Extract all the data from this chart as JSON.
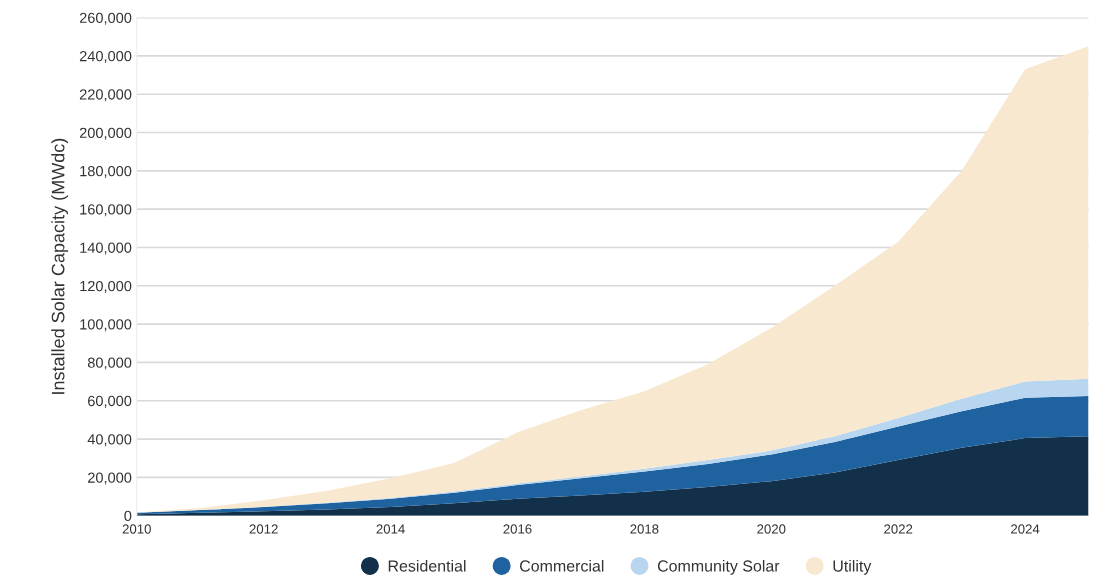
{
  "chart_data": {
    "type": "area",
    "stacked": true,
    "ylabel": "Installed Solar Capacity (MWdc)",
    "x": [
      2010,
      2011,
      2012,
      2013,
      2014,
      2015,
      2016,
      2017,
      2018,
      2019,
      2020,
      2021,
      2022,
      2023,
      2024,
      2025
    ],
    "xlim": [
      2010,
      2025
    ],
    "xticks": [
      2010,
      2012,
      2014,
      2016,
      2018,
      2020,
      2022,
      2024
    ],
    "ylim": [
      0,
      260000
    ],
    "yticks": [
      {
        "value": 0,
        "label": "0"
      },
      {
        "value": 20000,
        "label": "20,000"
      },
      {
        "value": 40000,
        "label": "40,000"
      },
      {
        "value": 60000,
        "label": "60,000"
      },
      {
        "value": 80000,
        "label": "80,000"
      },
      {
        "value": 100000,
        "label": "100,000"
      },
      {
        "value": 120000,
        "label": "120,000"
      },
      {
        "value": 140000,
        "label": "140,000"
      },
      {
        "value": 160000,
        "label": "160,000"
      },
      {
        "value": 180000,
        "label": "180,000"
      },
      {
        "value": 200000,
        "label": "200,000"
      },
      {
        "value": 220000,
        "label": "220,000"
      },
      {
        "value": 240000,
        "label": "240,000"
      },
      {
        "value": 260000,
        "label": "260,000"
      }
    ],
    "grid": "y",
    "legend": "bottom",
    "series": [
      {
        "name": "Residential",
        "color": "#12304a",
        "values": [
          800,
          1500,
          2300,
          3200,
          4500,
          6500,
          8800,
          10500,
          12500,
          15000,
          18000,
          22500,
          29000,
          35500,
          40500,
          41500
        ]
      },
      {
        "name": "Commercial",
        "color": "#1f62a0",
        "values": [
          700,
          1500,
          2200,
          3300,
          4300,
          5500,
          7200,
          9000,
          10500,
          12000,
          14000,
          16000,
          17500,
          19000,
          21000,
          21000
        ]
      },
      {
        "name": "Community Solar",
        "color": "#b8d6f0",
        "values": [
          0,
          0,
          100,
          200,
          400,
          600,
          800,
          1000,
          1500,
          2000,
          2000,
          3000,
          4500,
          6500,
          8500,
          9000
        ]
      },
      {
        "name": "Utility",
        "color": "#f7e8cf",
        "values": [
          100,
          1000,
          3400,
          6300,
          10300,
          14900,
          26700,
          34500,
          40500,
          50000,
          64000,
          78500,
          92000,
          119000,
          163000,
          173500
        ]
      }
    ]
  }
}
